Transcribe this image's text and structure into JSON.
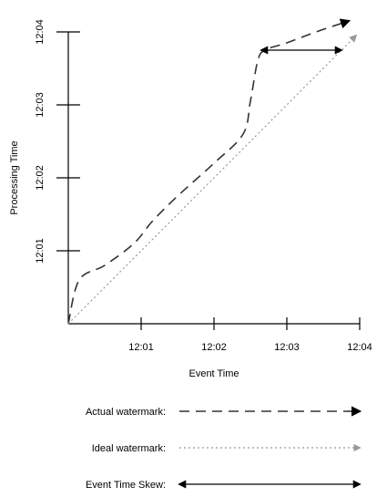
{
  "chart_data": {
    "type": "line",
    "xlabel": "Event Time",
    "ylabel": "Processing Time",
    "x_ticks": [
      "12:01",
      "12:02",
      "12:03",
      "12:04"
    ],
    "y_ticks": [
      "12:01",
      "12:02",
      "12:03",
      "12:04"
    ],
    "xlim": [
      "12:00",
      "12:04"
    ],
    "ylim": [
      "12:00",
      "12:04"
    ],
    "grid": false,
    "series": [
      {
        "name": "Actual watermark",
        "style": "dashed",
        "color": "#333333",
        "x": [
          "12:00:00",
          "12:00:09",
          "12:00:30",
          "12:00:54",
          "12:01:09",
          "12:01:30",
          "12:02:00",
          "12:02:24",
          "12:02:30",
          "12:02:36",
          "12:02:42",
          "12:03:00",
          "12:03:24",
          "12:03:51"
        ],
        "y": [
          "12:00:00",
          "12:00:36",
          "12:00:48",
          "12:01:06",
          "12:01:24",
          "12:01:45",
          "12:02:12",
          "12:02:36",
          "12:03:03",
          "12:03:36",
          "12:03:45",
          "12:03:51",
          "12:04:00",
          "12:04:09"
        ]
      },
      {
        "name": "Ideal watermark",
        "style": "dotted",
        "color": "#999999",
        "x": [
          "12:00:00",
          "12:03:57"
        ],
        "y": [
          "12:00:00",
          "12:03:57"
        ]
      }
    ],
    "annotations": [
      {
        "name": "Event Time Skew",
        "type": "double-arrow",
        "y": "12:03:45",
        "x_start": "12:02:39",
        "x_end": "12:03:45"
      }
    ]
  },
  "legend": [
    {
      "label": "Actual watermark:",
      "style": "dashed",
      "color": "#333333"
    },
    {
      "label": "Ideal watermark:",
      "style": "dotted",
      "color": "#999999"
    },
    {
      "label": "Event Time Skew:",
      "style": "double-arrow",
      "color": "#000000"
    }
  ]
}
